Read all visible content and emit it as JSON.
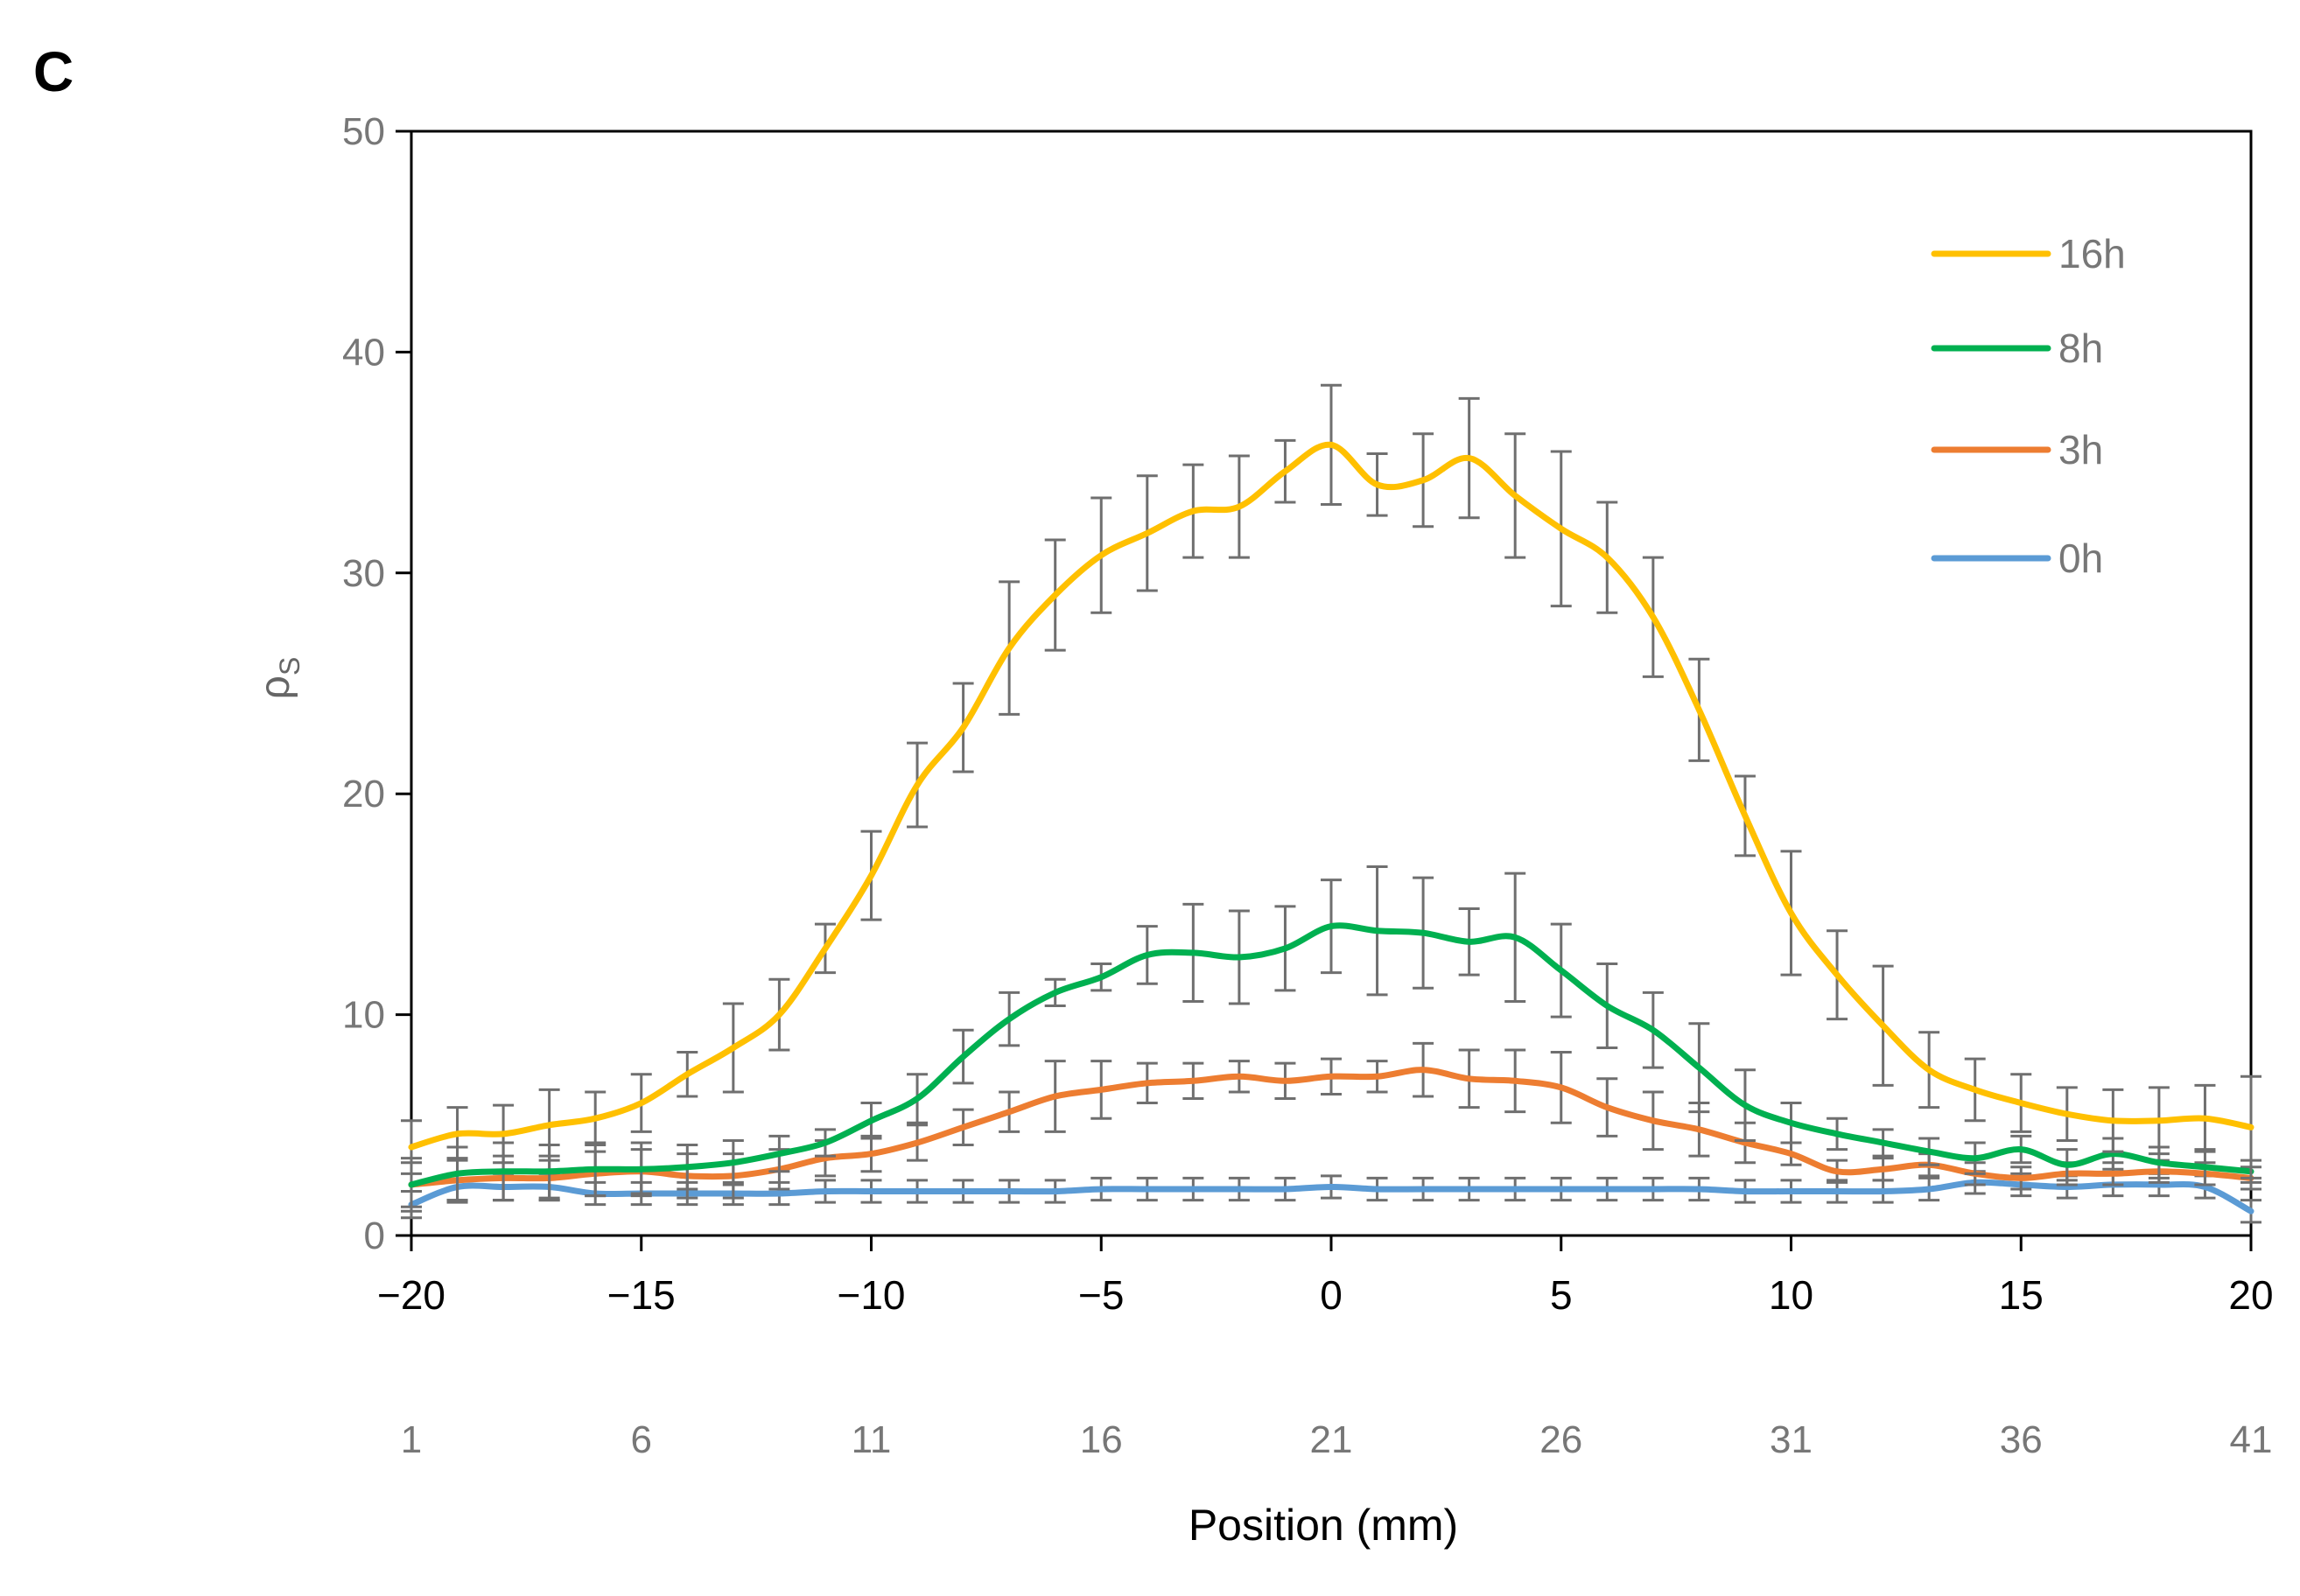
{
  "panel_label": "C",
  "chart_data": {
    "type": "line",
    "title": "",
    "xlabel": "Position (mm)",
    "ylabel": "ρS",
    "ylabel_main": "ρ",
    "ylabel_sub": "S",
    "xlim": [
      -20,
      20
    ],
    "ylim": [
      0,
      50
    ],
    "grid": false,
    "legend_position": "top-right",
    "yticks": [
      0,
      10,
      20,
      30,
      40,
      50
    ],
    "xticks": [
      {
        "value": -20,
        "label": "−20"
      },
      {
        "value": -15,
        "label": "−15"
      },
      {
        "value": -10,
        "label": "−10"
      },
      {
        "value": -5,
        "label": "−5"
      },
      {
        "value": 0,
        "label": "0"
      },
      {
        "value": 5,
        "label": "5"
      },
      {
        "value": 10,
        "label": "10"
      },
      {
        "value": 15,
        "label": "15"
      },
      {
        "value": 20,
        "label": "20"
      }
    ],
    "index_ticks": [
      {
        "value": -20,
        "label": "1"
      },
      {
        "value": -15,
        "label": "6"
      },
      {
        "value": -10,
        "label": "11"
      },
      {
        "value": -5,
        "label": "16"
      },
      {
        "value": 0,
        "label": "21"
      },
      {
        "value": 5,
        "label": "26"
      },
      {
        "value": 10,
        "label": "31"
      },
      {
        "value": 15,
        "label": "36"
      },
      {
        "value": 20,
        "label": "41"
      }
    ],
    "x": [
      -20,
      -19,
      -18,
      -17,
      -16,
      -15,
      -14,
      -13,
      -12,
      -11,
      -10,
      -9,
      -8,
      -7,
      -6,
      -5,
      -4,
      -3,
      -2,
      -1,
      0,
      1,
      2,
      3,
      4,
      5,
      6,
      7,
      8,
      9,
      10,
      11,
      12,
      13,
      14,
      15,
      16,
      17,
      18,
      19,
      20
    ],
    "series": [
      {
        "name": "16h",
        "color": "#FFC000",
        "values": [
          4.0,
          4.6,
          4.6,
          5.0,
          5.3,
          6.0,
          7.3,
          8.5,
          10.0,
          13.0,
          16.3,
          20.4,
          23.0,
          26.6,
          29.0,
          30.8,
          31.8,
          32.8,
          33.0,
          34.6,
          35.8,
          34.0,
          34.2,
          35.2,
          33.5,
          32.0,
          30.7,
          28.0,
          23.8,
          19.0,
          14.6,
          11.8,
          9.5,
          7.5,
          6.6,
          6.0,
          5.5,
          5.2,
          5.2,
          5.3,
          4.9
        ],
        "errors": [
          1.2,
          1.2,
          1.3,
          1.6,
          1.2,
          1.3,
          1.0,
          2.0,
          1.6,
          1.1,
          2.0,
          1.9,
          2.0,
          3.0,
          2.5,
          2.6,
          2.6,
          2.1,
          2.3,
          1.4,
          2.7,
          1.4,
          2.1,
          2.7,
          2.8,
          3.5,
          2.5,
          2.7,
          2.3,
          1.8,
          2.8,
          2.0,
          2.7,
          1.7,
          1.4,
          1.3,
          1.2,
          1.4,
          1.5,
          1.5,
          2.3
        ]
      },
      {
        "name": "8h",
        "color": "#00B050",
        "values": [
          2.3,
          2.8,
          2.9,
          2.9,
          3.0,
          3.0,
          3.1,
          3.3,
          3.7,
          4.2,
          5.2,
          6.2,
          8.1,
          9.8,
          11.0,
          11.7,
          12.7,
          12.8,
          12.6,
          13.0,
          14.0,
          13.8,
          13.7,
          13.3,
          13.5,
          12.0,
          10.4,
          9.3,
          7.6,
          5.9,
          5.1,
          4.6,
          4.2,
          3.8,
          3.5,
          3.9,
          3.2,
          3.7,
          3.3,
          3.1,
          2.9
        ],
        "errors": [
          1.2,
          1.2,
          1.3,
          1.2,
          1.2,
          1.2,
          1.0,
          1.0,
          0.8,
          0.6,
          0.8,
          1.1,
          1.2,
          1.2,
          0.6,
          0.6,
          1.3,
          2.2,
          2.1,
          1.9,
          2.1,
          2.9,
          2.5,
          1.5,
          2.9,
          2.1,
          1.9,
          1.7,
          2.0,
          1.6,
          0.9,
          0.7,
          0.6,
          0.6,
          0.7,
          0.6,
          0.7,
          0.7,
          0.7,
          0.8,
          0.5
        ]
      },
      {
        "name": "3h",
        "color": "#ED7D31",
        "values": [
          2.3,
          2.5,
          2.6,
          2.6,
          2.8,
          2.9,
          2.7,
          2.7,
          3.0,
          3.5,
          3.7,
          4.2,
          4.9,
          5.6,
          6.3,
          6.6,
          6.9,
          7.0,
          7.2,
          7.0,
          7.2,
          7.2,
          7.5,
          7.1,
          7.0,
          6.7,
          5.8,
          5.2,
          4.8,
          4.2,
          3.7,
          2.9,
          3.0,
          3.2,
          2.8,
          2.6,
          2.8,
          2.8,
          2.9,
          2.8,
          2.6
        ],
        "errors": [
          1.0,
          1.0,
          1.0,
          1.0,
          1.0,
          1.0,
          1.0,
          1.0,
          0.9,
          0.8,
          0.8,
          0.8,
          0.8,
          0.9,
          1.6,
          1.3,
          0.9,
          0.8,
          0.7,
          0.8,
          0.8,
          0.7,
          1.2,
          1.3,
          1.4,
          1.6,
          1.3,
          1.3,
          1.2,
          0.9,
          0.5,
          0.5,
          0.5,
          0.5,
          0.5,
          0.5,
          0.5,
          0.5,
          0.5,
          0.5,
          0.5
        ]
      },
      {
        "name": "0h",
        "color": "#5B9BD5",
        "values": [
          1.4,
          2.2,
          2.2,
          2.2,
          1.9,
          1.9,
          1.9,
          1.9,
          1.9,
          2.0,
          2.0,
          2.0,
          2.0,
          2.0,
          2.0,
          2.1,
          2.1,
          2.1,
          2.1,
          2.1,
          2.2,
          2.1,
          2.1,
          2.1,
          2.1,
          2.1,
          2.1,
          2.1,
          2.1,
          2.0,
          2.0,
          2.0,
          2.0,
          2.1,
          2.4,
          2.3,
          2.2,
          2.3,
          2.3,
          2.2,
          1.1
        ],
        "errors": [
          0.6,
          0.6,
          0.6,
          0.6,
          0.5,
          0.5,
          0.5,
          0.5,
          0.5,
          0.5,
          0.5,
          0.5,
          0.5,
          0.5,
          0.5,
          0.5,
          0.5,
          0.5,
          0.5,
          0.5,
          0.5,
          0.5,
          0.5,
          0.5,
          0.5,
          0.5,
          0.5,
          0.5,
          0.5,
          0.5,
          0.5,
          0.5,
          0.5,
          0.5,
          0.5,
          0.5,
          0.5,
          0.5,
          0.5,
          0.5,
          0.5
        ]
      }
    ],
    "legend": [
      {
        "label": "16h",
        "color": "#FFC000"
      },
      {
        "label": "8h",
        "color": "#00B050"
      },
      {
        "label": "3h",
        "color": "#ED7D31"
      },
      {
        "label": "0h",
        "color": "#5B9BD5"
      }
    ],
    "errorbar_color": "#6f6f6f",
    "axis_color": "#000000"
  }
}
